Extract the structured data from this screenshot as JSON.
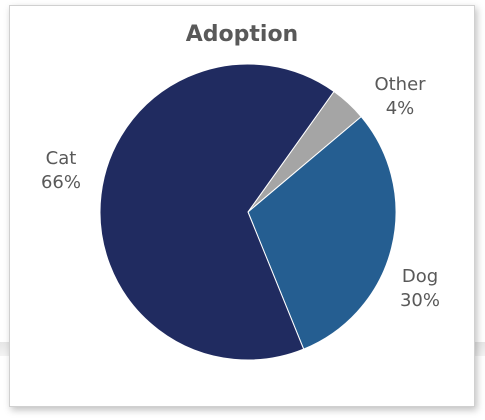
{
  "chart_data": {
    "type": "pie",
    "title": "Adoption",
    "slices": [
      {
        "name": "Other",
        "value": 4,
        "label": "4%",
        "color": "#a5a5a5"
      },
      {
        "name": "Dog",
        "value": 30,
        "label": "30%",
        "color": "#255e91"
      },
      {
        "name": "Cat",
        "value": 66,
        "label": "66%",
        "color": "#202b60"
      }
    ],
    "legend": "none",
    "data_labels": "category-and-percent"
  }
}
